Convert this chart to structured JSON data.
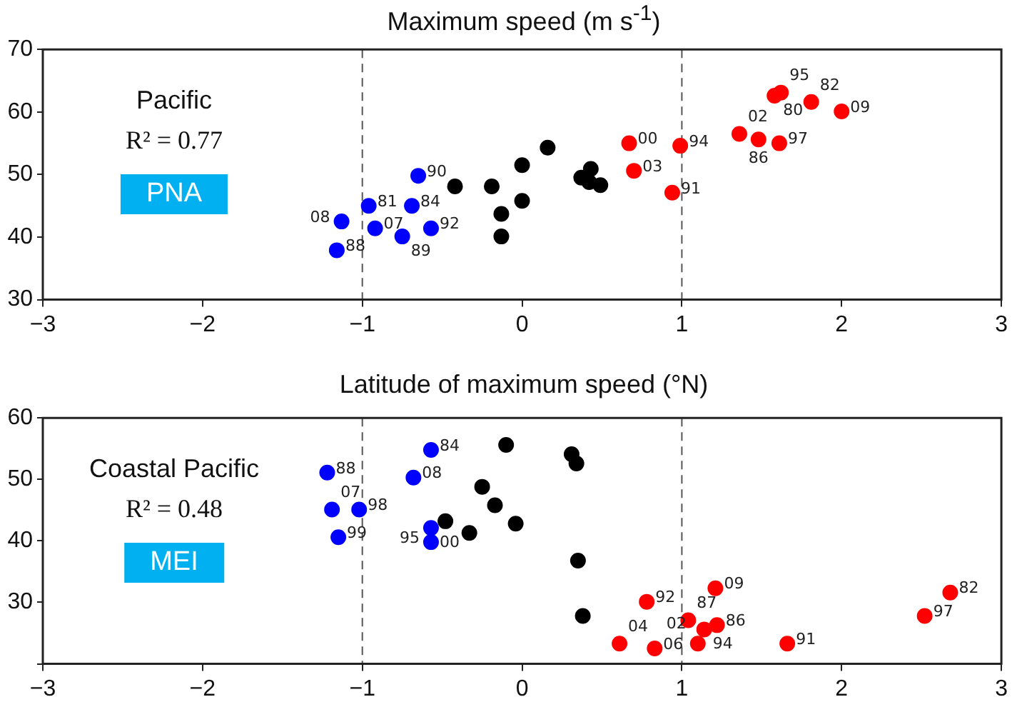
{
  "chart_data": [
    {
      "type": "scatter",
      "title": "Maximum speed (m s$^{-1}$)",
      "xlim": [
        -3,
        3
      ],
      "xticks": [
        -3,
        -2,
        -1,
        0,
        1,
        2,
        3
      ],
      "ylim": [
        30,
        70
      ],
      "yticks": [
        30,
        40,
        50,
        60,
        70
      ],
      "grid": false,
      "legend": false,
      "marker": "circle",
      "ref_lines": [
        {
          "axis": "x",
          "value": -1,
          "color": "#555555",
          "line_style": "dashed"
        },
        {
          "axis": "x",
          "value": 1,
          "color": "#555555",
          "line_style": "dashed"
        }
      ],
      "annotations": [
        "Pacific",
        "R² = 0.77",
        "PNA",
        {
          "text": "88",
          "x": -1.16,
          "y": 37.9
        },
        {
          "text": "08",
          "x": -1.13,
          "y": 42.5
        },
        {
          "text": "81",
          "x": -0.96,
          "y": 45.0
        },
        {
          "text": "07",
          "x": -0.92,
          "y": 41.4
        },
        {
          "text": "84",
          "x": -0.69,
          "y": 45.0
        },
        {
          "text": "90",
          "x": -0.65,
          "y": 49.8
        },
        {
          "text": "89",
          "x": -0.75,
          "y": 40.1
        },
        {
          "text": "92",
          "x": -0.57,
          "y": 41.4
        },
        {
          "text": "00",
          "x": 0.67,
          "y": 55.0
        },
        {
          "text": "03",
          "x": 0.7,
          "y": 50.6
        },
        {
          "text": "94",
          "x": 0.99,
          "y": 54.6
        },
        {
          "text": "91",
          "x": 0.94,
          "y": 47.1
        },
        {
          "text": "02",
          "x": 1.36,
          "y": 56.5
        },
        {
          "text": "86",
          "x": 1.48,
          "y": 55.6
        },
        {
          "text": "97",
          "x": 1.61,
          "y": 55.0
        },
        {
          "text": "80",
          "x": 1.58,
          "y": 62.6
        },
        {
          "text": "95",
          "x": 1.62,
          "y": 63.1
        },
        {
          "text": "82",
          "x": 1.81,
          "y": 61.6
        },
        {
          "text": "09",
          "x": 2.0,
          "y": 60.1
        }
      ],
      "series": [
        {
          "color": "#0000ff",
          "x": [
            -1.16,
            -1.13,
            -0.96,
            -0.92,
            -0.69,
            -0.65,
            -0.75,
            -0.57
          ],
          "values": [
            37.9,
            42.5,
            45.0,
            41.4,
            45.0,
            49.8,
            40.1,
            41.4
          ]
        },
        {
          "color": "#000000",
          "x": [
            -0.42,
            -0.19,
            -0.13,
            -0.13,
            0.0,
            0.0,
            0.16,
            0.43,
            0.37,
            0.42,
            0.49
          ],
          "values": [
            48.1,
            48.1,
            43.7,
            40.1,
            51.5,
            45.8,
            54.3,
            50.9,
            49.5,
            48.8,
            48.3
          ]
        },
        {
          "color": "#ff0000",
          "x": [
            0.67,
            0.7,
            0.99,
            0.94,
            1.36,
            1.48,
            1.61,
            1.58,
            1.62,
            1.81,
            2.0
          ],
          "values": [
            55.0,
            50.6,
            54.6,
            47.1,
            56.5,
            55.6,
            55.0,
            62.6,
            63.1,
            61.6,
            60.1
          ]
        }
      ]
    },
    {
      "type": "scatter",
      "title": "Latitude of maximum speed (°N)",
      "xlim": [
        -3,
        3
      ],
      "xticks": [
        -3,
        -2,
        -1,
        0,
        1,
        2,
        3
      ],
      "ylim": [
        20,
        60
      ],
      "yticks": [
        {
          "value": 20,
          "label": null
        },
        30,
        40,
        50,
        60
      ],
      "grid": false,
      "legend": false,
      "marker": "circle",
      "ref_lines": [
        {
          "axis": "x",
          "value": -1,
          "color": "#555555",
          "line_style": "dashed"
        },
        {
          "axis": "x",
          "value": 1,
          "color": "#555555",
          "line_style": "dashed"
        }
      ],
      "annotations": [
        "Coastal Pacific",
        "R² = 0.48",
        "MEI",
        {
          "text": "88",
          "x": -1.22,
          "y": 51.1
        },
        {
          "text": "07",
          "x": -1.19,
          "y": 45.1
        },
        {
          "text": "98",
          "x": -1.02,
          "y": 45.1
        },
        {
          "text": "99",
          "x": -1.15,
          "y": 40.6
        },
        {
          "text": "84",
          "x": -0.57,
          "y": 54.8
        },
        {
          "text": "08",
          "x": -0.68,
          "y": 50.3
        },
        {
          "text": "00",
          "x": -0.57,
          "y": 42.1
        },
        {
          "text": "95",
          "x": -0.57,
          "y": 39.8
        },
        {
          "text": "92",
          "x": 0.78,
          "y": 30.1
        },
        {
          "text": "09",
          "x": 1.21,
          "y": 32.3
        },
        {
          "text": "87",
          "x": 1.04,
          "y": 27.1
        },
        {
          "text": "94",
          "x": 1.14,
          "y": 25.6
        },
        {
          "text": "86",
          "x": 1.22,
          "y": 26.3
        },
        {
          "text": "04",
          "x": 0.61,
          "y": 23.3
        },
        {
          "text": "06",
          "x": 0.83,
          "y": 22.5
        },
        {
          "text": "02",
          "x": 1.1,
          "y": 23.3
        },
        {
          "text": "91",
          "x": 1.66,
          "y": 23.3
        },
        {
          "text": "97",
          "x": 2.52,
          "y": 27.8
        },
        {
          "text": "82",
          "x": 2.68,
          "y": 31.6
        }
      ],
      "series": [
        {
          "color": "#0000ff",
          "x": [
            -1.22,
            -1.19,
            -1.02,
            -1.15,
            -0.57,
            -0.68,
            -0.57,
            -0.57
          ],
          "values": [
            51.1,
            45.1,
            45.1,
            40.6,
            54.8,
            50.3,
            42.1,
            39.8
          ]
        },
        {
          "color": "#000000",
          "x": [
            -0.48,
            -0.33,
            -0.25,
            -0.17,
            -0.1,
            -0.04,
            0.31,
            0.34,
            0.35,
            0.38
          ],
          "values": [
            43.2,
            41.3,
            48.8,
            45.8,
            55.6,
            42.8,
            54.1,
            52.6,
            36.8,
            27.8
          ]
        },
        {
          "color": "#ff0000",
          "x": [
            0.78,
            1.21,
            1.04,
            1.14,
            1.22,
            0.61,
            0.83,
            1.1,
            1.66,
            2.52,
            2.68
          ],
          "values": [
            30.1,
            32.3,
            27.1,
            25.6,
            26.3,
            23.3,
            22.5,
            23.3,
            23.3,
            27.8,
            31.6
          ]
        }
      ]
    }
  ]
}
